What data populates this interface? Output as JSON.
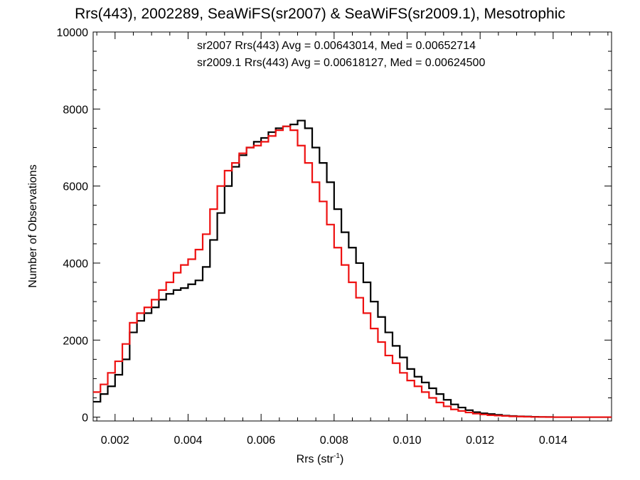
{
  "chart_data": {
    "type": "line",
    "title": "Rrs(443), 2002289, SeaWiFS(sr2007) & SeaWiFS(sr2009.1), Mesotrophic",
    "xlabel": "Rrs (str",
    "xlabel_exp": "-1",
    "xlabel_close": ")",
    "ylabel": "Number of Observations",
    "xlim": [
      0.0014,
      0.0156
    ],
    "ylim": [
      -100,
      10000
    ],
    "x_ticks": [
      0.002,
      0.004,
      0.006,
      0.008,
      0.01,
      0.012,
      0.014
    ],
    "x_tick_labels": [
      "0.002",
      "0.004",
      "0.006",
      "0.008",
      "0.010",
      "0.012",
      "0.014"
    ],
    "y_ticks": [
      0,
      2000,
      4000,
      6000,
      8000,
      10000
    ],
    "y_tick_labels": [
      "0",
      "2000",
      "4000",
      "6000",
      "8000",
      "10000"
    ],
    "grid": false,
    "annotations": [
      {
        "text": "sr2007 Rrs(443) Avg = 0.00643014, Med = 0.00652714",
        "color": "#000000"
      },
      {
        "text": "sr2009.1 Rrs(443) Avg = 0.00618127, Med = 0.00624500",
        "color": "#ee1111"
      }
    ],
    "series": [
      {
        "color": "#000000",
        "x": [
          0.0014,
          0.0016,
          0.0018,
          0.002,
          0.0022,
          0.0024,
          0.0026,
          0.0028,
          0.003,
          0.0032,
          0.0034,
          0.0036,
          0.0038,
          0.004,
          0.0042,
          0.0044,
          0.0046,
          0.0048,
          0.005,
          0.0052,
          0.0054,
          0.0056,
          0.0058,
          0.006,
          0.0062,
          0.0064,
          0.0066,
          0.0068,
          0.007,
          0.0072,
          0.0074,
          0.0076,
          0.0078,
          0.008,
          0.0082,
          0.0084,
          0.0086,
          0.0088,
          0.009,
          0.0092,
          0.0094,
          0.0096,
          0.0098,
          0.01,
          0.0102,
          0.0104,
          0.0106,
          0.0108,
          0.011,
          0.0112,
          0.0114,
          0.0116,
          0.0118,
          0.012,
          0.0122,
          0.0124,
          0.0126,
          0.0128,
          0.013,
          0.0132,
          0.0134,
          0.0136,
          0.0138,
          0.014,
          0.0142,
          0.0144,
          0.0146,
          0.0148,
          0.015,
          0.0152,
          0.0154,
          0.0156
        ],
        "values": [
          400,
          600,
          800,
          1100,
          1500,
          2200,
          2500,
          2700,
          2850,
          3050,
          3200,
          3300,
          3350,
          3450,
          3550,
          3900,
          4600,
          5300,
          6000,
          6500,
          6800,
          7000,
          7150,
          7250,
          7400,
          7500,
          7550,
          7600,
          7700,
          7500,
          7000,
          6600,
          6100,
          5400,
          4800,
          4400,
          4000,
          3500,
          3000,
          2600,
          2200,
          1850,
          1550,
          1250,
          1050,
          900,
          750,
          600,
          450,
          330,
          250,
          180,
          130,
          100,
          80,
          60,
          40,
          30,
          20,
          15,
          10,
          5,
          5,
          0,
          0,
          0,
          0,
          0,
          0,
          0,
          0,
          0
        ]
      },
      {
        "color": "#ee1111",
        "x": [
          0.0014,
          0.0016,
          0.0018,
          0.002,
          0.0022,
          0.0024,
          0.0026,
          0.0028,
          0.003,
          0.0032,
          0.0034,
          0.0036,
          0.0038,
          0.004,
          0.0042,
          0.0044,
          0.0046,
          0.0048,
          0.005,
          0.0052,
          0.0054,
          0.0056,
          0.0058,
          0.006,
          0.0062,
          0.0064,
          0.0066,
          0.0068,
          0.007,
          0.0072,
          0.0074,
          0.0076,
          0.0078,
          0.008,
          0.0082,
          0.0084,
          0.0086,
          0.0088,
          0.009,
          0.0092,
          0.0094,
          0.0096,
          0.0098,
          0.01,
          0.0102,
          0.0104,
          0.0106,
          0.0108,
          0.011,
          0.0112,
          0.0114,
          0.0116,
          0.0118,
          0.012,
          0.0122,
          0.0124,
          0.0126,
          0.0128,
          0.013,
          0.0132,
          0.0134,
          0.0136,
          0.0138,
          0.014,
          0.0142,
          0.0144,
          0.0146,
          0.0148,
          0.015,
          0.0152,
          0.0154,
          0.0156
        ],
        "values": [
          650,
          850,
          1150,
          1450,
          1900,
          2450,
          2700,
          2850,
          3050,
          3300,
          3500,
          3750,
          3950,
          4100,
          4350,
          4750,
          5400,
          6000,
          6400,
          6600,
          6850,
          7000,
          7050,
          7150,
          7300,
          7450,
          7550,
          7450,
          7050,
          6600,
          6100,
          5600,
          5000,
          4400,
          3950,
          3500,
          3100,
          2700,
          2300,
          1950,
          1600,
          1400,
          1150,
          950,
          800,
          650,
          500,
          380,
          280,
          200,
          160,
          120,
          90,
          70,
          50,
          40,
          30,
          20,
          15,
          10,
          5,
          5,
          0,
          0,
          0,
          0,
          0,
          0,
          0,
          0,
          0,
          0
        ]
      }
    ]
  }
}
